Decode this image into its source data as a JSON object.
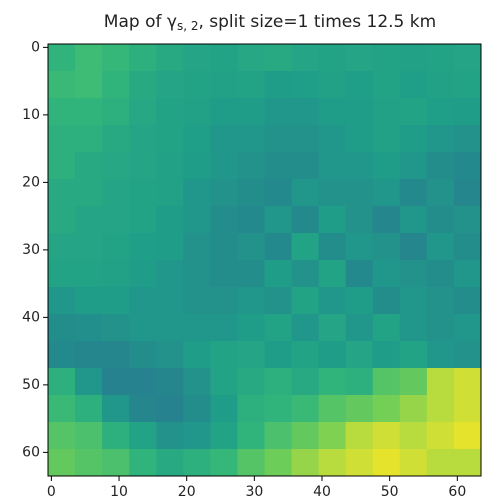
{
  "chart_data": {
    "type": "heatmap",
    "title": {
      "text": "Map of γ",
      "subscript": "s, 2",
      "rest": ", split size=1 times 12.5 km"
    },
    "cmap": "viridis",
    "xlim": [
      -0.5,
      63.5
    ],
    "ylim": [
      63.5,
      -0.5
    ],
    "xticks": [
      0,
      10,
      20,
      30,
      40,
      50,
      60
    ],
    "yticks": [
      0,
      10,
      20,
      30,
      40,
      50,
      60
    ],
    "z": [
      [
        0.73,
        0.77,
        0.75,
        0.71,
        0.68,
        0.66,
        0.65,
        0.67,
        0.68,
        0.66,
        0.65,
        0.66,
        0.65,
        0.64,
        0.65,
        0.66
      ],
      [
        0.76,
        0.77,
        0.73,
        0.68,
        0.66,
        0.65,
        0.64,
        0.65,
        0.62,
        0.63,
        0.64,
        0.63,
        0.65,
        0.63,
        0.64,
        0.65
      ],
      [
        0.73,
        0.73,
        0.71,
        0.67,
        0.65,
        0.64,
        0.62,
        0.62,
        0.59,
        0.59,
        0.62,
        0.62,
        0.64,
        0.65,
        0.63,
        0.62
      ],
      [
        0.71,
        0.71,
        0.68,
        0.66,
        0.65,
        0.63,
        0.59,
        0.59,
        0.57,
        0.57,
        0.59,
        0.62,
        0.64,
        0.62,
        0.59,
        0.57
      ],
      [
        0.71,
        0.68,
        0.67,
        0.66,
        0.64,
        0.62,
        0.59,
        0.57,
        0.55,
        0.55,
        0.59,
        0.59,
        0.62,
        0.59,
        0.55,
        0.53
      ],
      [
        0.68,
        0.68,
        0.66,
        0.65,
        0.64,
        0.59,
        0.57,
        0.55,
        0.53,
        0.59,
        0.57,
        0.57,
        0.59,
        0.53,
        0.57,
        0.52
      ],
      [
        0.68,
        0.66,
        0.66,
        0.65,
        0.62,
        0.59,
        0.55,
        0.53,
        0.59,
        0.53,
        0.62,
        0.57,
        0.52,
        0.59,
        0.55,
        0.57
      ],
      [
        0.66,
        0.66,
        0.65,
        0.63,
        0.62,
        0.57,
        0.55,
        0.57,
        0.53,
        0.65,
        0.55,
        0.59,
        0.57,
        0.52,
        0.59,
        0.55
      ],
      [
        0.65,
        0.65,
        0.64,
        0.62,
        0.59,
        0.57,
        0.55,
        0.55,
        0.62,
        0.57,
        0.65,
        0.53,
        0.59,
        0.57,
        0.55,
        0.59
      ],
      [
        0.59,
        0.62,
        0.62,
        0.59,
        0.59,
        0.57,
        0.57,
        0.59,
        0.57,
        0.65,
        0.59,
        0.62,
        0.55,
        0.59,
        0.57,
        0.55
      ],
      [
        0.55,
        0.56,
        0.57,
        0.59,
        0.59,
        0.59,
        0.59,
        0.62,
        0.65,
        0.59,
        0.66,
        0.59,
        0.65,
        0.59,
        0.57,
        0.59
      ],
      [
        0.53,
        0.52,
        0.52,
        0.55,
        0.57,
        0.62,
        0.65,
        0.66,
        0.62,
        0.65,
        0.62,
        0.66,
        0.62,
        0.65,
        0.59,
        0.57
      ],
      [
        0.71,
        0.59,
        0.5,
        0.5,
        0.52,
        0.57,
        0.65,
        0.68,
        0.71,
        0.68,
        0.73,
        0.71,
        0.82,
        0.85,
        0.94,
        0.96
      ],
      [
        0.76,
        0.71,
        0.59,
        0.52,
        0.5,
        0.55,
        0.62,
        0.71,
        0.73,
        0.76,
        0.82,
        0.85,
        0.88,
        0.91,
        0.94,
        0.96
      ],
      [
        0.82,
        0.8,
        0.71,
        0.65,
        0.57,
        0.59,
        0.65,
        0.73,
        0.8,
        0.85,
        0.89,
        0.94,
        0.96,
        0.94,
        0.96,
        0.98
      ],
      [
        0.85,
        0.82,
        0.8,
        0.73,
        0.68,
        0.71,
        0.75,
        0.82,
        0.87,
        0.91,
        0.94,
        0.96,
        0.98,
        0.96,
        0.94,
        0.94
      ]
    ]
  }
}
